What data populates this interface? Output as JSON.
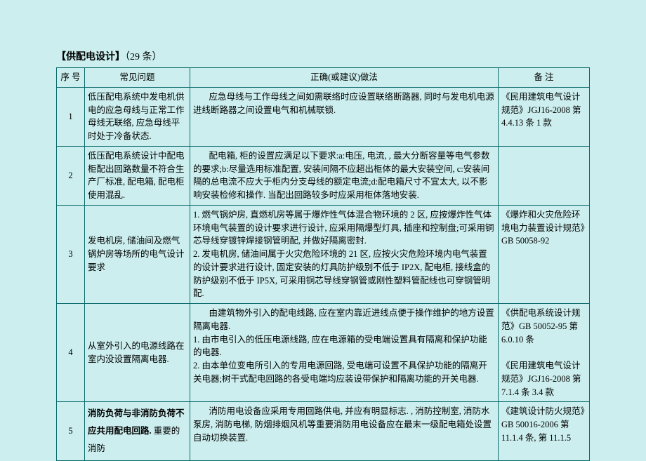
{
  "title": {
    "bracket_open": "【",
    "label": "供配电设计",
    "bracket_close": "】",
    "count": "（29 条）"
  },
  "headers": {
    "seq": "序 号",
    "problem": "常见问题",
    "method": "正确(或建议)做法",
    "note": "备   注"
  },
  "rows": [
    {
      "seq": "1",
      "problem": "低压配电系统中发电机供电的应急母线与正常工作母线无联络, 应急母线平时处于冷备状态.",
      "method_indent": "应急母线与工作母线之间如需联络时应设置联络断路器, 同时与发电机电源进线断路器之间设置电气和机械联锁.",
      "note": "《民用建筑电气设计规范》JGJ16-2008 第4.4.13 条 1 款"
    },
    {
      "seq": "2",
      "problem": "低压配电系统设计中配电柜配出回路数量不符合生产厂标准, 配电箱, 配电柜使用混乱.",
      "method_indent": "配电箱, 柜的设置应满足以下要求:a:电压, 电流, , 最大分断容量等电气参数的要求;b:尽量选用标准配置, 安装间隔不应超出柜体的最大安装空间, c:安装间隔的总电流不应大于柜内分支母线的额定电流;d:配电箱尺寸不宜太大, 以不影响安装检修和操作. 当配出回路较多时应采用柜体落地安装.",
      "note": ""
    },
    {
      "seq": "3",
      "problem": "发电机房, 储油间及燃气锅炉房等场所的电气设计要求",
      "method_1": "1. 燃气锅炉房, 直燃机房等属于爆炸性气体混合物环境的 2 区, 应按爆炸性气体环境电气装置的设计要求进行设计, 应采用隔爆型灯具, 插座和控制盘;可采用铜芯导线穿镀锌焊接钢管明配, 并做好隔离密封.",
      "method_2": "2. 发电机房, 储油间属于火灾危险环境的 21 区, 应按火灾危险环境内电气装置的设计要求进行设计, 固定安装的灯具防护级别不低于 IP2X, 配电柜, 接线盒的防护级别不低于 IP5X, 可采用铜芯导线穿钢管或刚性塑料管配线也可穿钢管明配.",
      "note": "《爆炸和火灾危险环境电力装置设计规范》GB 50058-92"
    },
    {
      "seq": "4",
      "problem": "从室外引入的电源线路在室内没设置隔离电器.",
      "method_indent": "由建筑物外引入的配电线路, 应在室内靠近进线点便于操作维护的地方设置隔离电器.",
      "method_1": "1. 由市电引入的低压电源线路, 应在电源箱的受电端设置具有隔离和保护功能的电器.",
      "method_2": "2. 由本单位变电所引入的专用电源回路, 受电端可设置不具保护功能的隔离开关电器;树干式配电回路的各受电端均应装设带保护和隔离功能的开关电器.",
      "note": "《供配电系统设计规范》GB 50052-95 第6.0.10 条\n\n《民用建筑电气设计规范》JGJ16-2008 第7.1.4 条 3.4 款"
    },
    {
      "seq": "5",
      "problem_bold": "消防负荷与非消防负荷不应共用配电回路.",
      "problem_tail": " 重要的消防",
      "method_indent": "消防用电设备应采用专用回路供电, 并应有明显标志. , 消防控制室, 消防水泵房, 消防电梯, 防烟排烟风机等重要消防用电设备应在最末一级配电箱处设置自动切换装置.",
      "note": "《建筑设计防火规范》GB 50016-2006 第11.1.4 条, 第 11.1.5"
    }
  ]
}
